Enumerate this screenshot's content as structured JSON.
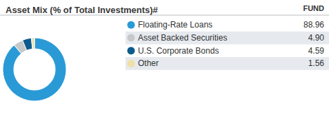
{
  "chart_data": {
    "type": "pie",
    "title": "Asset Mix (% of Total Investments)#",
    "column_header": "FUND",
    "categories": [
      "Floating-Rate Loans",
      "Asset Backed Securities",
      "U.S. Corporate Bonds",
      "Other"
    ],
    "values": [
      88.96,
      4.9,
      4.59,
      1.56
    ],
    "value_labels": [
      "88.96",
      "4.90",
      "4.59",
      "1.56"
    ],
    "colors": [
      "#2a9ad6",
      "#c6c8ca",
      "#0d5b8c",
      "#efdfa8"
    ],
    "legend": "right"
  }
}
